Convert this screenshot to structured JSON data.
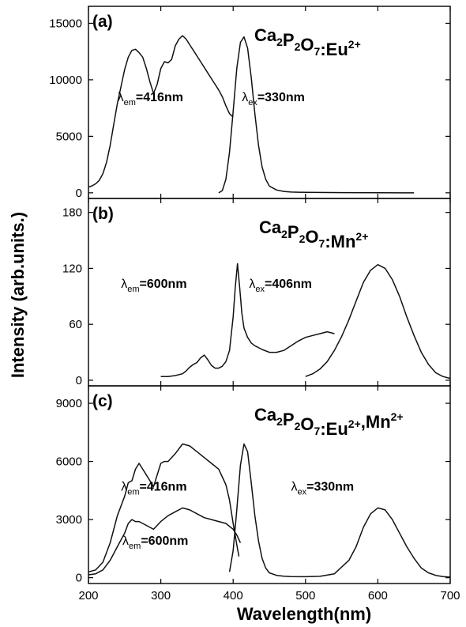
{
  "chart_data": [
    {
      "type": "line",
      "panel_label": "(a)",
      "formula": {
        "base": [
          [
            "Ca",
            "2"
          ],
          [
            "P",
            "2"
          ],
          [
            "O",
            "7"
          ]
        ],
        "suffix": ":Eu",
        "sup": "2+",
        "tail": ""
      },
      "annotations": [
        {
          "symbol": "λ",
          "sub": "em",
          "text": "=416nm",
          "at": [
            240,
            8100
          ]
        },
        {
          "symbol": "λ",
          "sub": "ex",
          "text": "=330nm",
          "at": [
            412,
            8100
          ]
        }
      ],
      "xlim": [
        200,
        700
      ],
      "ylim": [
        -500,
        16500
      ],
      "yticks": [
        0,
        5000,
        10000,
        15000
      ],
      "ytick_labels": [
        "0",
        "5000",
        "10000",
        "15000"
      ],
      "series": [
        {
          "x": [
            200,
            205,
            210,
            215,
            220,
            225,
            230,
            235,
            240,
            245,
            250,
            255,
            260,
            265,
            270,
            275,
            280,
            285,
            290,
            295,
            300,
            305,
            310,
            315,
            320,
            325,
            330,
            335,
            340,
            345,
            350,
            355,
            360,
            365,
            370,
            375,
            380,
            385,
            390,
            395,
            400
          ],
          "y": [
            500,
            620,
            800,
            1100,
            1700,
            2700,
            4200,
            6100,
            7900,
            9400,
            10900,
            12000,
            12600,
            12700,
            12400,
            12000,
            11000,
            9800,
            8800,
            9600,
            11000,
            11600,
            11500,
            11800,
            13000,
            13600,
            13900,
            13600,
            13100,
            12600,
            12100,
            11600,
            11100,
            10600,
            10100,
            9600,
            9100,
            8500,
            7700,
            7000,
            6700
          ]
        },
        {
          "x": [
            380,
            385,
            390,
            395,
            400,
            405,
            410,
            415,
            420,
            425,
            430,
            435,
            440,
            445,
            450,
            460,
            470,
            480,
            500,
            550,
            600,
            650
          ],
          "y": [
            0,
            200,
            1200,
            3600,
            7200,
            11000,
            13300,
            13800,
            12800,
            10200,
            7000,
            4200,
            2300,
            1200,
            600,
            250,
            120,
            70,
            40,
            20,
            10,
            0
          ]
        }
      ]
    },
    {
      "type": "line",
      "panel_label": "(b)",
      "formula": {
        "base": [
          [
            "Ca",
            "2"
          ],
          [
            "P",
            "2"
          ],
          [
            "O",
            "7"
          ]
        ],
        "suffix": ":Mn",
        "sup": "2+",
        "tail": ""
      },
      "annotations": [
        {
          "symbol": "λ",
          "sub": "em",
          "text": "=600nm",
          "at": [
            245,
            99
          ]
        },
        {
          "symbol": "λ",
          "sub": "ex",
          "text": "=406nm",
          "at": [
            422,
            99
          ]
        }
      ],
      "xlim": [
        200,
        700
      ],
      "ylim": [
        -6,
        195
      ],
      "yticks": [
        0,
        60,
        120,
        180
      ],
      "ytick_labels": [
        "0",
        "60",
        "120",
        "180"
      ],
      "series": [
        {
          "x": [
            300,
            310,
            320,
            330,
            335,
            340,
            345,
            350,
            355,
            360,
            365,
            370,
            375,
            380,
            385,
            390,
            395,
            400,
            403,
            406,
            409,
            412,
            415,
            420,
            425,
            430,
            440,
            450,
            460,
            470,
            480,
            490,
            500,
            510,
            520,
            530,
            540
          ],
          "y": [
            4,
            4,
            5,
            7,
            10,
            14,
            17,
            19,
            24,
            27,
            22,
            16,
            13,
            13,
            15,
            20,
            32,
            68,
            100,
            125,
            100,
            72,
            56,
            46,
            40,
            37,
            33,
            30,
            30,
            32,
            37,
            42,
            46,
            48,
            50,
            52,
            50
          ]
        },
        {
          "x": [
            500,
            510,
            520,
            530,
            540,
            550,
            560,
            570,
            580,
            590,
            600,
            610,
            620,
            630,
            640,
            650,
            660,
            670,
            680,
            690,
            700
          ],
          "y": [
            4,
            7,
            12,
            20,
            32,
            47,
            65,
            85,
            105,
            118,
            124,
            120,
            108,
            90,
            68,
            48,
            30,
            17,
            8,
            4,
            2
          ]
        }
      ]
    },
    {
      "type": "line",
      "panel_label": "(c)",
      "formula": {
        "base": [
          [
            "Ca",
            "2"
          ],
          [
            "P",
            "2"
          ],
          [
            "O",
            "7"
          ]
        ],
        "suffix": ":Eu",
        "sup": "2+",
        "tail": ",Mn2+"
      },
      "annotations": [
        {
          "symbol": "λ",
          "sub": "em",
          "text": "=416nm",
          "at": [
            245,
            4500
          ]
        },
        {
          "symbol": "λ",
          "sub": "em",
          "text": "=600nm",
          "at": [
            247,
            1700
          ]
        },
        {
          "symbol": "λ",
          "sub": "ex",
          "text": "=330nm",
          "at": [
            480,
            4500
          ]
        }
      ],
      "xlim": [
        200,
        700
      ],
      "ylim": [
        -300,
        9900
      ],
      "yticks": [
        0,
        3000,
        6000,
        9000
      ],
      "ytick_labels": [
        "0",
        "3000",
        "6000",
        "9000"
      ],
      "series": [
        {
          "x": [
            200,
            210,
            220,
            230,
            240,
            250,
            255,
            260,
            265,
            270,
            275,
            280,
            285,
            290,
            295,
            300,
            305,
            310,
            320,
            330,
            340,
            350,
            360,
            370,
            380,
            390,
            395,
            400,
            405,
            408
          ],
          "y": [
            300,
            400,
            800,
            1800,
            3200,
            4200,
            4900,
            5000,
            5600,
            5900,
            5600,
            5300,
            5000,
            4700,
            5300,
            5900,
            6000,
            6000,
            6400,
            6900,
            6800,
            6500,
            6200,
            5900,
            5600,
            4800,
            4000,
            2800,
            1700,
            1100
          ]
        },
        {
          "x": [
            200,
            210,
            220,
            230,
            240,
            250,
            255,
            260,
            265,
            270,
            280,
            290,
            300,
            310,
            320,
            330,
            340,
            350,
            360,
            370,
            380,
            390,
            400,
            405,
            410
          ],
          "y": [
            150,
            200,
            400,
            900,
            1600,
            2300,
            2800,
            3000,
            2900,
            2900,
            2700,
            2500,
            2900,
            3200,
            3400,
            3600,
            3500,
            3300,
            3100,
            3000,
            2900,
            2800,
            2500,
            2200,
            1800
          ]
        },
        {
          "x": [
            395,
            400,
            405,
            410,
            415,
            420,
            425,
            430,
            435,
            440,
            445,
            450,
            460,
            470,
            480,
            500,
            520,
            540,
            560,
            570,
            580,
            590,
            600,
            610,
            620,
            630,
            640,
            650,
            660,
            670,
            680,
            690,
            700
          ],
          "y": [
            300,
            1400,
            3500,
            5800,
            6900,
            6500,
            4900,
            3200,
            1900,
            1000,
            500,
            250,
            120,
            80,
            60,
            50,
            70,
            200,
            900,
            1600,
            2600,
            3300,
            3600,
            3500,
            3000,
            2300,
            1600,
            1000,
            500,
            250,
            120,
            60,
            30
          ]
        }
      ]
    }
  ],
  "ylabel": "Intensity (arb.units.)",
  "xlabel": "Wavelength(nm)",
  "xticks": [
    200,
    300,
    400,
    500,
    600,
    700
  ],
  "xtick_labels": [
    "200",
    "300",
    "400",
    "500",
    "600",
    "700"
  ]
}
